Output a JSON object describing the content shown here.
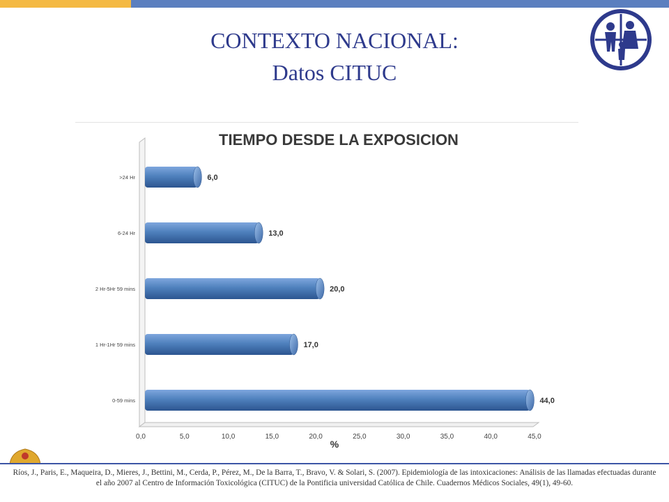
{
  "slide": {
    "title_line1": "CONTEXTO NACIONAL:",
    "title_line2": "Datos CITUC",
    "citation": "Ríos, J., Paris, E., Maqueira, D., Mieres, J., Bettini, M., Cerda, P., Pérez, M., De la Barra, T., Bravo, V. & Solari, S. (2007). Epidemiología de las intoxicaciones: Análisis de las llamadas efectuadas durante el año 2007 al Centro de Información Toxicológica (CITUC) de la Pontificia universidad Católica de Chile. Cuadernos Médicos Sociales, 49(1), 49-60.",
    "colors": {
      "title": "#2e3a8c",
      "top_gold": "#f4b942",
      "top_blue": "#5b7fbf",
      "bar": "#4f81bd"
    }
  },
  "chart_data": {
    "type": "bar",
    "orientation": "horizontal",
    "title": "TIEMPO DESDE LA EXPOSICION",
    "xlabel": "%",
    "ylabel": "",
    "categories": [
      ">24 Hr",
      "6-24 Hr",
      "2 Hr-5Hr 59 mins",
      "1 Hr-1Hr 59 mins",
      "0-59 mins"
    ],
    "values": [
      6.0,
      13.0,
      20.0,
      17.0,
      44.0
    ],
    "value_labels": [
      "6,0",
      "13,0",
      "20,0",
      "17,0",
      "44,0"
    ],
    "xlim": [
      0,
      45
    ],
    "xticks": [
      "0,0",
      "5,0",
      "10,0",
      "15,0",
      "20,0",
      "25,0",
      "30,0",
      "35,0",
      "40,0",
      "45,0"
    ],
    "grid": false,
    "bar_color": "#4f81bd"
  }
}
